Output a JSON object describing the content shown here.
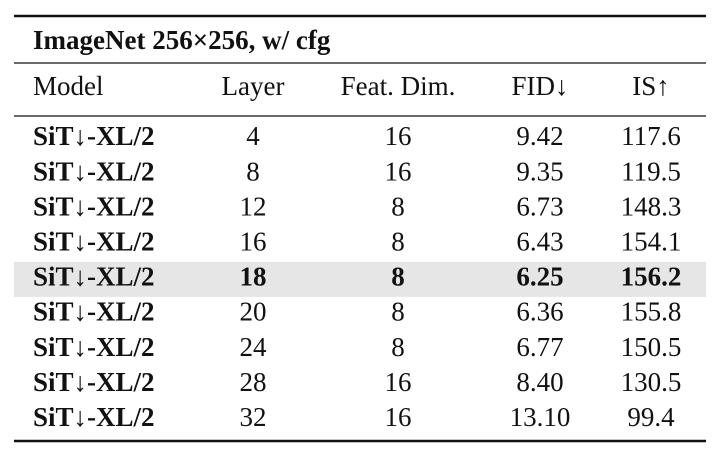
{
  "table": {
    "title": "ImageNet 256×256, w/ cfg",
    "columns": [
      "Model",
      "Layer",
      "Feat. Dim.",
      "FID↓",
      "IS↑"
    ],
    "rows": [
      [
        "SiT↓-XL/2",
        "4",
        "16",
        "9.42",
        "117.6"
      ],
      [
        "SiT↓-XL/2",
        "8",
        "16",
        "9.35",
        "119.5"
      ],
      [
        "SiT↓-XL/2",
        "12",
        "8",
        "6.73",
        "148.3"
      ],
      [
        "SiT↓-XL/2",
        "16",
        "8",
        "6.43",
        "154.1"
      ],
      [
        "SiT↓-XL/2",
        "18",
        "8",
        "6.25",
        "156.2"
      ],
      [
        "SiT↓-XL/2",
        "20",
        "8",
        "6.36",
        "155.8"
      ],
      [
        "SiT↓-XL/2",
        "24",
        "8",
        "6.77",
        "150.5"
      ],
      [
        "SiT↓-XL/2",
        "28",
        "16",
        "8.40",
        "130.5"
      ],
      [
        "SiT↓-XL/2",
        "32",
        "16",
        "13.10",
        "99.4"
      ]
    ],
    "highlight_row": 4
  }
}
